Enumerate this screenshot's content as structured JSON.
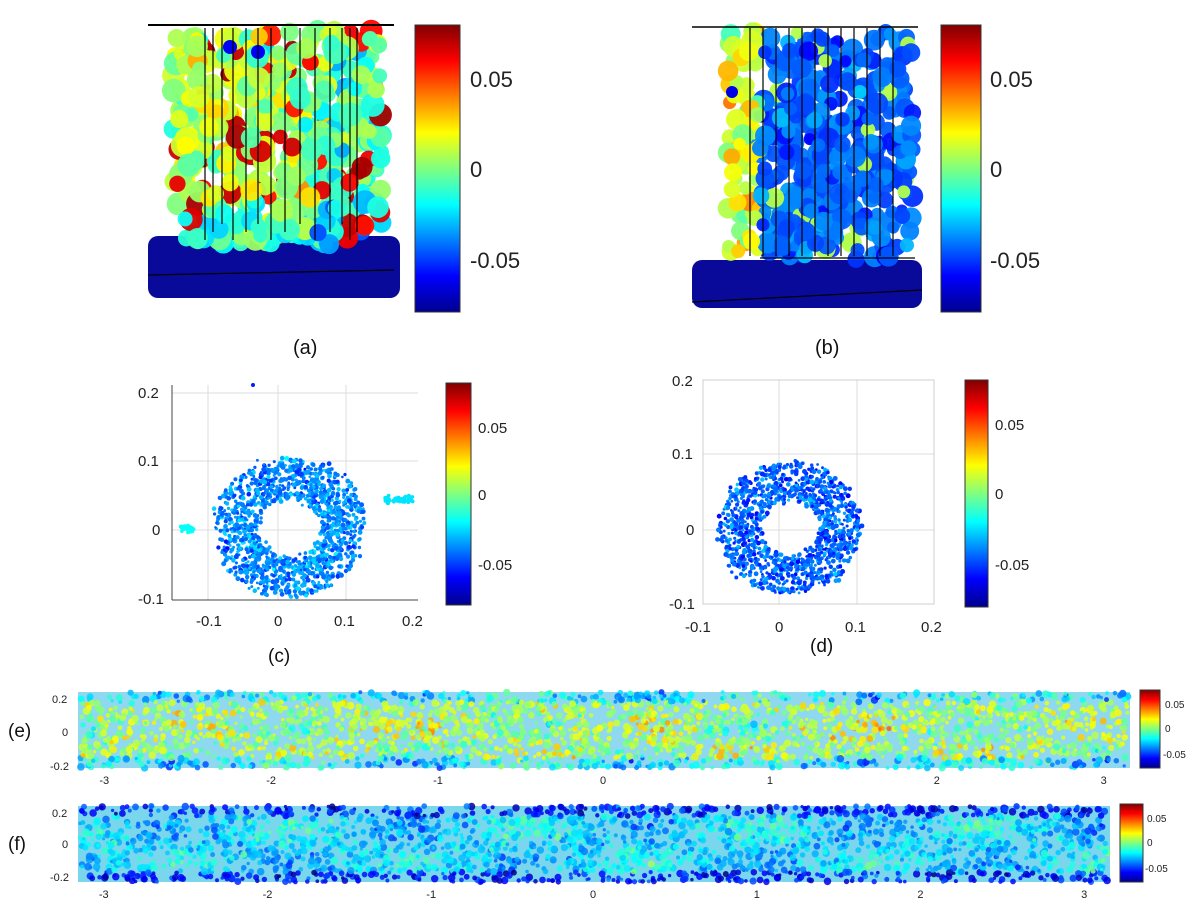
{
  "colormap": {
    "name": "jet",
    "stops": [
      "#00008f",
      "#0000ff",
      "#00ffff",
      "#ffff00",
      "#ff0000",
      "#800000"
    ],
    "range": [
      -0.075,
      0.075
    ]
  },
  "colorbar_ticks": [
    "0.05",
    "0",
    "-0.05"
  ],
  "chart_data": [
    {
      "id": "a",
      "label": "(a)",
      "type": "scatter",
      "view": "side",
      "description_values": {
        "value_range": [
          -0.075,
          0.075
        ],
        "dominant": "positive"
      },
      "colorbar_ticks": [
        "0.05",
        "0",
        "-0.05"
      ]
    },
    {
      "id": "b",
      "label": "(b)",
      "type": "scatter",
      "view": "side",
      "description_values": {
        "value_range": [
          -0.075,
          0.075
        ],
        "dominant": "negative"
      },
      "colorbar_ticks": [
        "0.05",
        "0",
        "-0.05"
      ]
    },
    {
      "id": "c",
      "label": "(c)",
      "type": "scatter",
      "view": "top",
      "xlim": [
        -0.15,
        0.21
      ],
      "ylim": [
        -0.1,
        0.21
      ],
      "xticks": [
        "-0.1",
        "0",
        "0.1",
        "0.2"
      ],
      "yticks": [
        "0.2",
        "0.1",
        "0",
        "-0.1"
      ],
      "grid": true,
      "colorbar_ticks": [
        "0.05",
        "0",
        "-0.05"
      ]
    },
    {
      "id": "d",
      "label": "(d)",
      "type": "scatter",
      "view": "top",
      "xlim": [
        -0.1,
        0.2
      ],
      "ylim": [
        -0.1,
        0.2
      ],
      "xticks": [
        "-0.1",
        "0",
        "0.1",
        "0.2"
      ],
      "yticks": [
        "0.2",
        "0.1",
        "0",
        "-0.1"
      ],
      "grid": true,
      "colorbar_ticks": [
        "0.05",
        "0",
        "-0.05"
      ]
    },
    {
      "id": "e",
      "label": "(e)",
      "type": "heatmap",
      "view": "unwrapped",
      "xlim": [
        -3.14,
        3.14
      ],
      "ylim": [
        -0.22,
        0.22
      ],
      "xticks": [
        "-3",
        "-2",
        "-1",
        "0",
        "1",
        "2",
        "3"
      ],
      "yticks": [
        "0.2",
        "0",
        "-0.2"
      ],
      "colorbar_ticks": [
        "0.05",
        "0",
        "-0.05"
      ]
    },
    {
      "id": "f",
      "label": "(f)",
      "type": "heatmap",
      "view": "unwrapped",
      "xlim": [
        -3.14,
        3.14
      ],
      "ylim": [
        -0.22,
        0.22
      ],
      "xticks": [
        "-3",
        "-2",
        "-1",
        "0",
        "1",
        "2",
        "3"
      ],
      "yticks": [
        "0.2",
        "0",
        "-0.2"
      ],
      "colorbar_ticks": [
        "0.05",
        "0",
        "-0.05"
      ]
    }
  ]
}
